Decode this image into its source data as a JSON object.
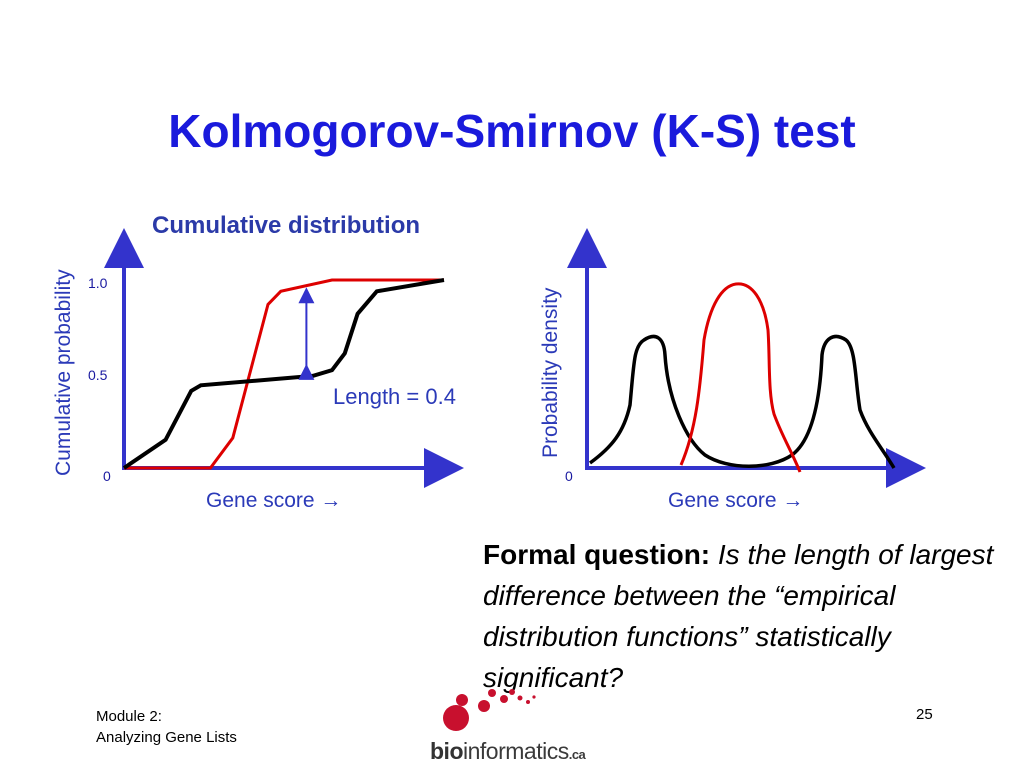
{
  "slide": {
    "title": "Kolmogorov-Smirnov (K-S) test",
    "page_number": "25",
    "footer_line1": "Module 2:",
    "footer_line2": "Analyzing Gene Lists"
  },
  "question": {
    "bold": "Formal question:",
    "italic": "Is the length of largest difference between the “empirical distribution functions” statistically significant?"
  },
  "logo": {
    "text_bold": "bio",
    "text_rest": "informatics",
    "text_suffix": ".ca"
  },
  "colors": {
    "axis": "#3333cc",
    "series_red": "#dd0000",
    "series_black": "#000000",
    "logo_red": "#c8102e"
  },
  "chart_data": [
    {
      "type": "line",
      "title": "Cumulative distribution",
      "xlabel": "Gene score →",
      "ylabel": "Cumulative probability",
      "y_ticks": [
        "1.0",
        "0.5",
        "0"
      ],
      "ylim": [
        0,
        1.0
      ],
      "xlim": [
        0,
        1
      ],
      "annotation": "Length = 0.4",
      "series": [
        {
          "color": "#dd0000",
          "points": [
            [
              0,
              0
            ],
            [
              0.27,
              0
            ],
            [
              0.34,
              0.16
            ],
            [
              0.45,
              0.87
            ],
            [
              0.49,
              0.94
            ],
            [
              0.65,
              1.0
            ],
            [
              1.0,
              1.0
            ]
          ]
        },
        {
          "color": "#000000",
          "points": [
            [
              0,
              0
            ],
            [
              0.13,
              0.15
            ],
            [
              0.21,
              0.41
            ],
            [
              0.24,
              0.44
            ],
            [
              0.59,
              0.49
            ],
            [
              0.65,
              0.52
            ],
            [
              0.69,
              0.61
            ],
            [
              0.73,
              0.82
            ],
            [
              0.79,
              0.94
            ],
            [
              1.0,
              1.0
            ]
          ]
        }
      ],
      "marker_x": 0.57,
      "marker_y_range": [
        0.49,
        0.94
      ]
    },
    {
      "type": "line",
      "xlabel": "Gene score →",
      "ylabel": "Probability density",
      "y_ticks": [
        "0"
      ],
      "ylim": [
        0,
        1.0
      ],
      "xlim": [
        0,
        1
      ]
    }
  ]
}
